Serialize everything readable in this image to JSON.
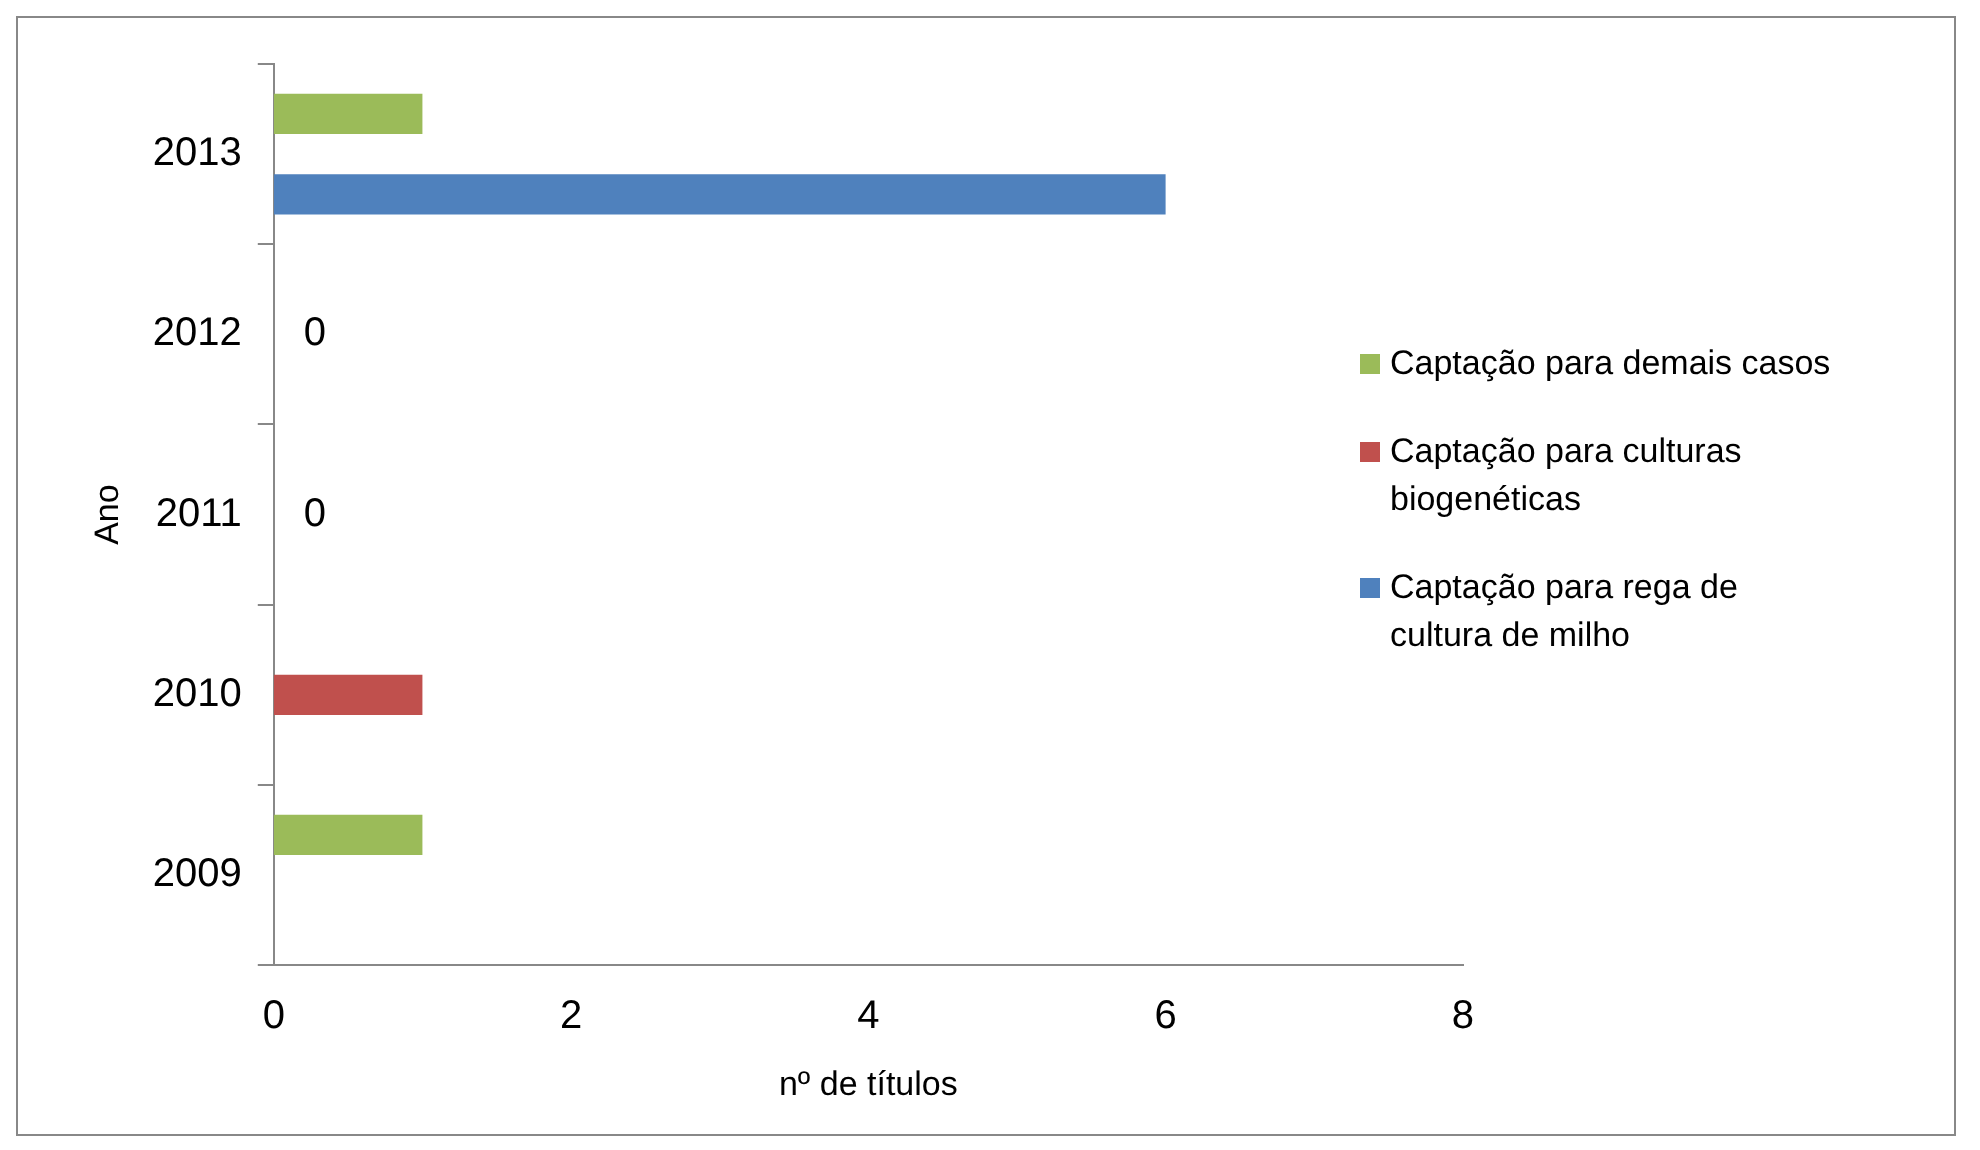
{
  "chart_data": {
    "type": "bar",
    "orientation": "horizontal",
    "xlabel": "nº de títulos",
    "ylabel": "Ano",
    "categories": [
      "2013",
      "2012",
      "2011",
      "2010",
      "2009"
    ],
    "series": [
      {
        "name": "Captação para demais casos",
        "color": "#9bbb59",
        "values": [
          1,
          null,
          null,
          null,
          1
        ]
      },
      {
        "name": "Captação para culturas biogenéticas",
        "color": "#c0504d",
        "values": [
          null,
          0,
          0,
          1,
          null
        ],
        "value_labels": [
          null,
          "0",
          "0",
          null,
          null
        ]
      },
      {
        "name": "Captação para rega de cultura de milho",
        "color": "#4f81bd",
        "values": [
          6,
          null,
          null,
          null,
          null
        ]
      }
    ],
    "xlim": [
      0,
      8
    ],
    "xticks": [
      0,
      2,
      4,
      6,
      8
    ],
    "grid": false,
    "legend": "right"
  }
}
